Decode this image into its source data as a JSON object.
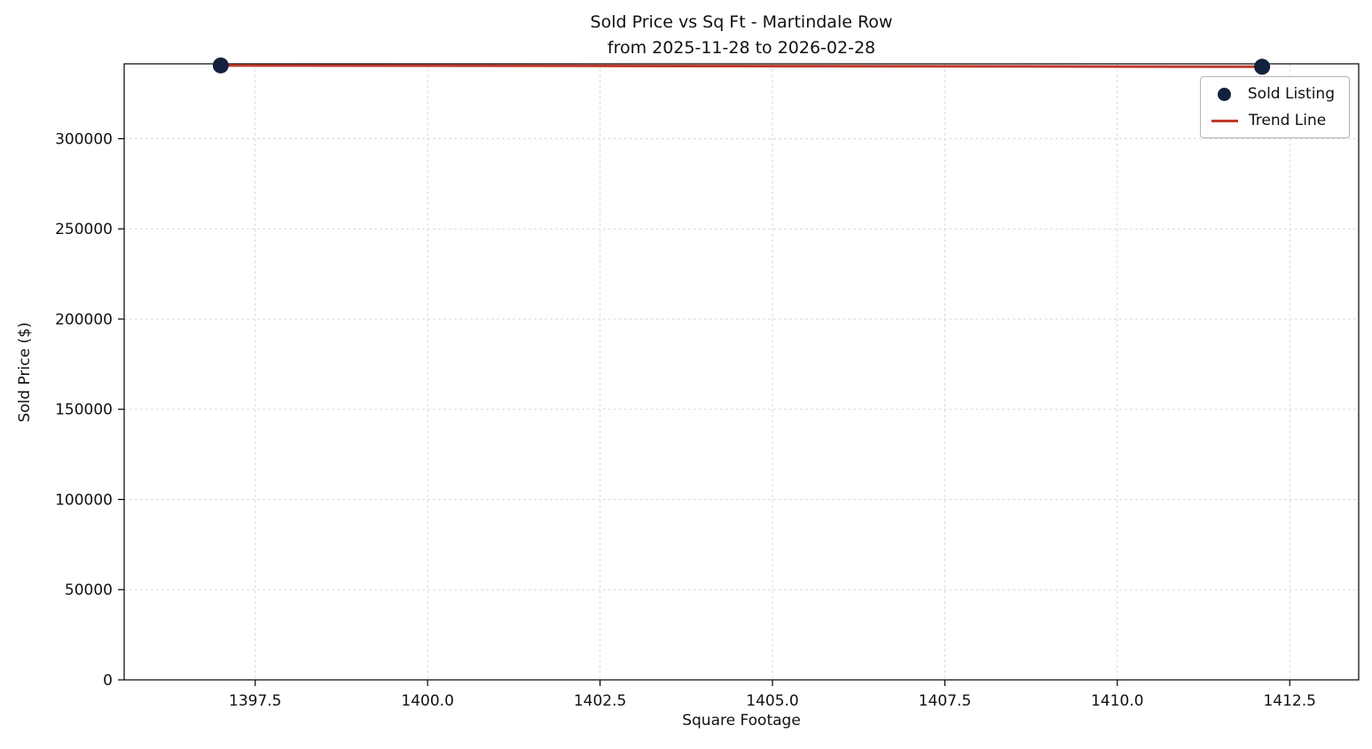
{
  "chart_data": {
    "type": "scatter",
    "title_line1": "Sold Price vs Sq Ft - Martindale Row",
    "title_line2": "from 2025-11-28 to 2026-02-28",
    "xlabel": "Square Footage",
    "ylabel": "Sold Price ($)",
    "xlim": [
      1395.6,
      1413.5
    ],
    "ylim": [
      0,
      341500
    ],
    "x_ticks": [
      1397.5,
      1400.0,
      1402.5,
      1405.0,
      1407.5,
      1410.0,
      1412.5
    ],
    "x_tick_labels": [
      "1397.5",
      "1400.0",
      "1402.5",
      "1405.0",
      "1407.5",
      "1410.0",
      "1412.5"
    ],
    "y_ticks": [
      0,
      50000,
      100000,
      150000,
      200000,
      250000,
      300000
    ],
    "y_tick_labels": [
      "0",
      "50000",
      "100000",
      "150000",
      "200000",
      "250000",
      "300000"
    ],
    "grid": true,
    "grid_color": "#d9d9d9",
    "legend_position": "upper right",
    "series": [
      {
        "name": "Sold Listing",
        "kind": "scatter",
        "color": "#14213d",
        "marker_radius": 9,
        "points": [
          {
            "x": 1397.0,
            "y": 340600
          },
          {
            "x": 1412.1,
            "y": 339900
          }
        ]
      },
      {
        "name": "Trend Line",
        "kind": "line",
        "color": "#c0392b",
        "line_width": 3,
        "points": [
          {
            "x": 1397.0,
            "y": 340600
          },
          {
            "x": 1412.1,
            "y": 339900
          }
        ]
      }
    ]
  }
}
